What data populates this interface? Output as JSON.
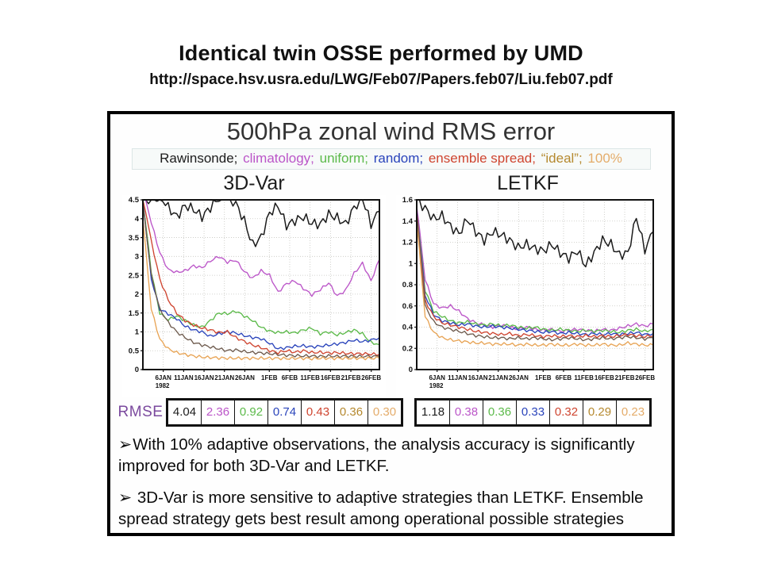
{
  "slide": {
    "title": "Identical twin OSSE performed by UMD",
    "url": "http://space.hsv.usra.edu/LWG/Feb07/Papers.feb07/Liu.feb07.pdf"
  },
  "figure": {
    "title": "500hPa zonal wind RMS error",
    "rmse_label": "RMSE",
    "legend": [
      {
        "label": "Rawinsonde;",
        "color": "#1c1c1c"
      },
      {
        "label": "climatology;",
        "color": "#bb55c8"
      },
      {
        "label": "uniform;",
        "color": "#5cba4a"
      },
      {
        "label": "random;",
        "color": "#2a44bb"
      },
      {
        "label": "ensemble spread;",
        "color": "#cf4530"
      },
      {
        "label": "“ideal”;",
        "color": "#b5892f"
      },
      {
        "label": "100%",
        "color": "#e4ac6a"
      }
    ],
    "bullets": [
      {
        "marker": "➢",
        "text": "With 10% adaptive observations, the analysis accuracy is significantly improved for both 3D-Var and LETKF."
      },
      {
        "marker": "➢",
        "text": " 3D-Var is more sensitive to adaptive strategies than LETKF. Ensemble spread strategy gets best result among operational possible strategies"
      }
    ]
  },
  "chart_data": [
    {
      "type": "line",
      "title": "3D-Var",
      "ylim": [
        0,
        4.5
      ],
      "ytick_vals": [
        0,
        0.5,
        1,
        1.5,
        2,
        2.5,
        3,
        3.5,
        4,
        4.5
      ],
      "ytick_labels": [
        "0",
        "0.5",
        "1",
        "1.5",
        "2",
        "2.5",
        "3",
        "3.5",
        "4",
        "4.5"
      ],
      "x_range": [
        0,
        58
      ],
      "xtick_days": [
        5,
        10,
        15,
        20,
        25,
        31,
        36,
        41,
        46,
        51,
        56
      ],
      "xtick_labels": [
        "6JAN",
        "11JAN",
        "16JAN",
        "21JAN",
        "26JAN",
        "1FEB",
        "6FEB",
        "11FEB",
        "16FEB",
        "21FEB",
        "26FEB"
      ],
      "x_year_label": "1982",
      "grid": true,
      "series": [
        {
          "name": "Rawinsonde",
          "color": "#1c1c1c",
          "text_color": "#1c1c1c",
          "rmse": "4.04",
          "values": [
            4.6,
            4.5,
            4.62,
            4.3,
            4.05,
            4.35,
            4.25,
            4.05,
            4.3,
            4.55,
            4.6,
            4.4,
            3.95,
            3.3,
            3.5,
            4.15,
            4.35,
            3.82,
            3.95,
            4.05,
            3.88,
            3.85,
            4.12,
            4.02,
            3.85,
            4.3,
            4.55,
            3.85,
            4.2
          ]
        },
        {
          "name": "climatology",
          "color": "#bb55c8",
          "text_color": "#bb55c8",
          "rmse": "2.36",
          "values": [
            4.8,
            3.9,
            3.1,
            2.65,
            2.58,
            2.62,
            2.75,
            2.7,
            2.88,
            3.0,
            2.85,
            2.9,
            2.6,
            2.42,
            2.62,
            2.5,
            2.05,
            2.28,
            2.35,
            2.15,
            1.98,
            2.12,
            2.3,
            1.95,
            2.1,
            2.55,
            2.82,
            2.35,
            2.92
          ]
        },
        {
          "name": "uniform",
          "color": "#5cba4a",
          "text_color": "#5cba4a",
          "rmse": "0.92",
          "values": [
            4.5,
            2.6,
            1.5,
            1.32,
            1.42,
            1.3,
            1.18,
            1.12,
            1.3,
            1.5,
            1.48,
            1.55,
            1.42,
            1.3,
            1.12,
            1.02,
            0.98,
            1.0,
            0.97,
            1.05,
            1.1,
            0.95,
            1.0,
            0.92,
            0.98,
            1.05,
            0.95,
            0.72,
            0.66
          ]
        },
        {
          "name": "random",
          "color": "#2a44bb",
          "text_color": "#2a44bb",
          "rmse": "0.74",
          "values": [
            4.5,
            2.4,
            1.6,
            1.48,
            1.35,
            1.15,
            1.05,
            1.0,
            0.88,
            0.95,
            1.0,
            0.97,
            0.9,
            0.85,
            0.82,
            0.7,
            0.55,
            0.58,
            0.62,
            0.63,
            0.6,
            0.62,
            0.65,
            0.68,
            0.72,
            0.78,
            0.74,
            0.78,
            0.85
          ]
        },
        {
          "name": "ensemble spread",
          "color": "#cf4530",
          "text_color": "#cf4530",
          "rmse": "0.43",
          "values": [
            4.6,
            3.4,
            2.4,
            1.85,
            1.5,
            1.3,
            1.18,
            1.1,
            1.05,
            0.98,
            1.0,
            0.85,
            0.75,
            0.65,
            0.58,
            0.5,
            0.45,
            0.5,
            0.46,
            0.5,
            0.45,
            0.46,
            0.44,
            0.45,
            0.43,
            0.42,
            0.42,
            0.41,
            0.4
          ]
        },
        {
          "name": "ideal",
          "color": "#6e5b4e",
          "text_color": "#b5892f",
          "rmse": "0.36",
          "values": [
            4.4,
            2.5,
            1.6,
            1.25,
            1.0,
            0.85,
            0.72,
            0.65,
            0.6,
            0.55,
            0.5,
            0.52,
            0.48,
            0.45,
            0.44,
            0.42,
            0.4,
            0.38,
            0.37,
            0.36,
            0.36,
            0.35,
            0.36,
            0.35,
            0.36,
            0.35,
            0.35,
            0.35,
            0.35
          ]
        },
        {
          "name": "100%",
          "color": "#e8a455",
          "text_color": "#e4ac6a",
          "rmse": "0.30",
          "values": [
            4.0,
            1.6,
            0.8,
            0.55,
            0.45,
            0.4,
            0.36,
            0.33,
            0.32,
            0.31,
            0.3,
            0.3,
            0.3,
            0.3,
            0.3,
            0.3,
            0.3,
            0.29,
            0.3,
            0.3,
            0.29,
            0.3,
            0.3,
            0.3,
            0.3,
            0.3,
            0.3,
            0.3,
            0.3
          ]
        }
      ]
    },
    {
      "type": "line",
      "title": "LETKF",
      "ylim": [
        0,
        1.6
      ],
      "ytick_vals": [
        0,
        0.2,
        0.4,
        0.6,
        0.8,
        1,
        1.2,
        1.4,
        1.6
      ],
      "ytick_labels": [
        "0",
        "0.2",
        "0.4",
        "0.6",
        "0.8",
        "1",
        "1.2",
        "1.4",
        "1.6"
      ],
      "x_range": [
        0,
        58
      ],
      "xtick_days": [
        5,
        10,
        15,
        20,
        25,
        31,
        36,
        41,
        46,
        51,
        56
      ],
      "xtick_labels": [
        "6JAN",
        "11JAN",
        "16JAN",
        "21JAN",
        "26JAN",
        "1FEB",
        "6FEB",
        "11FEB",
        "16FEB",
        "21FEB",
        "26FEB"
      ],
      "x_year_label": "1982",
      "grid": true,
      "series": [
        {
          "name": "Rawinsonde",
          "color": "#1c1c1c",
          "text_color": "#1c1c1c",
          "rmse": "1.18",
          "values": [
            1.6,
            1.52,
            1.42,
            1.45,
            1.35,
            1.28,
            1.42,
            1.3,
            1.22,
            1.3,
            1.27,
            1.22,
            1.15,
            1.18,
            1.14,
            1.12,
            1.18,
            1.1,
            1.05,
            1.12,
            0.98,
            1.1,
            1.22,
            1.18,
            1.08,
            1.1,
            1.44,
            1.13,
            1.3
          ]
        },
        {
          "name": "climatology",
          "color": "#bb55c8",
          "text_color": "#bb55c8",
          "rmse": "0.38",
          "values": [
            1.55,
            0.85,
            0.62,
            0.58,
            0.6,
            0.55,
            0.48,
            0.44,
            0.42,
            0.4,
            0.42,
            0.4,
            0.38,
            0.4,
            0.38,
            0.37,
            0.38,
            0.36,
            0.37,
            0.38,
            0.37,
            0.36,
            0.38,
            0.37,
            0.39,
            0.41,
            0.43,
            0.41,
            0.43
          ]
        },
        {
          "name": "uniform",
          "color": "#5cba4a",
          "text_color": "#5cba4a",
          "rmse": "0.36",
          "values": [
            1.5,
            0.75,
            0.55,
            0.5,
            0.46,
            0.44,
            0.45,
            0.43,
            0.42,
            0.43,
            0.41,
            0.42,
            0.4,
            0.39,
            0.4,
            0.38,
            0.37,
            0.38,
            0.37,
            0.36,
            0.37,
            0.36,
            0.37,
            0.36,
            0.35,
            0.37,
            0.38,
            0.36,
            0.38
          ]
        },
        {
          "name": "random",
          "color": "#2a44bb",
          "text_color": "#2a44bb",
          "rmse": "0.33",
          "values": [
            1.5,
            0.7,
            0.52,
            0.46,
            0.44,
            0.42,
            0.43,
            0.41,
            0.4,
            0.41,
            0.4,
            0.39,
            0.38,
            0.37,
            0.36,
            0.35,
            0.36,
            0.34,
            0.35,
            0.34,
            0.33,
            0.34,
            0.33,
            0.34,
            0.33,
            0.34,
            0.35,
            0.33,
            0.34
          ]
        },
        {
          "name": "ensemble spread",
          "color": "#cf4530",
          "text_color": "#cf4530",
          "rmse": "0.32",
          "values": [
            1.48,
            0.65,
            0.5,
            0.44,
            0.42,
            0.4,
            0.38,
            0.36,
            0.35,
            0.34,
            0.33,
            0.34,
            0.32,
            0.33,
            0.32,
            0.31,
            0.32,
            0.31,
            0.32,
            0.31,
            0.32,
            0.31,
            0.32,
            0.31,
            0.32,
            0.33,
            0.32,
            0.31,
            0.32
          ]
        },
        {
          "name": "ideal",
          "color": "#6e5b4e",
          "text_color": "#b5892f",
          "rmse": "0.29",
          "values": [
            1.45,
            0.6,
            0.45,
            0.4,
            0.38,
            0.36,
            0.34,
            0.32,
            0.31,
            0.3,
            0.3,
            0.29,
            0.3,
            0.29,
            0.3,
            0.29,
            0.28,
            0.29,
            0.3,
            0.29,
            0.28,
            0.29,
            0.3,
            0.29,
            0.3,
            0.31,
            0.3,
            0.29,
            0.3
          ]
        },
        {
          "name": "100%",
          "color": "#e8a455",
          "text_color": "#e4ac6a",
          "rmse": "0.23",
          "values": [
            1.4,
            0.5,
            0.35,
            0.3,
            0.28,
            0.27,
            0.26,
            0.25,
            0.25,
            0.24,
            0.24,
            0.24,
            0.23,
            0.24,
            0.23,
            0.23,
            0.24,
            0.23,
            0.23,
            0.24,
            0.23,
            0.23,
            0.24,
            0.23,
            0.23,
            0.25,
            0.24,
            0.23,
            0.23
          ]
        }
      ]
    }
  ]
}
